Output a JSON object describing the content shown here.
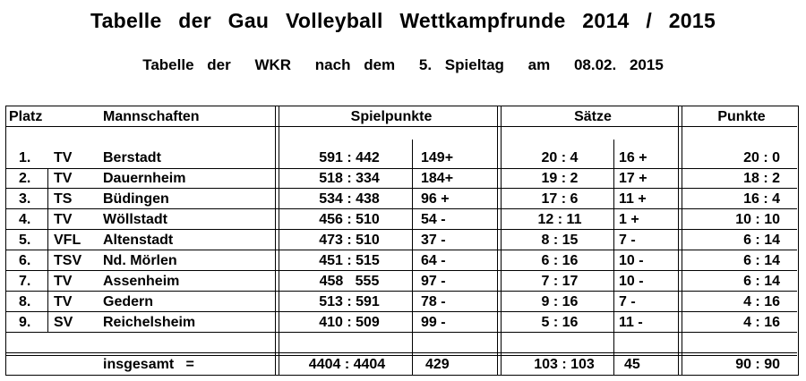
{
  "title": "Tabelle der Gau Volleyball Wettkampfrunde 2014 / 2015",
  "subtitle": {
    "part1": "Tabelle der",
    "part2": "WKR",
    "part3": "nach dem",
    "part4": "5. Spieltag",
    "part5": "am",
    "part6": "08.02. 2015"
  },
  "headers": {
    "platz": "Platz",
    "mannschaften": "Mannschaften",
    "spielpunkte": "Spielpunkte",
    "saetze": "Sätze",
    "punkte": "Punkte"
  },
  "rows": [
    {
      "platz": "1.",
      "verein": "TV",
      "name": "Berstadt",
      "sp": "591 : 442",
      "spd": "149+",
      "s": "20 : 4",
      "sd": "16 +",
      "p": "20 : 0"
    },
    {
      "platz": "2.",
      "verein": "TV",
      "name": "Dauernheim",
      "sp": "518 : 334",
      "spd": "184+",
      "s": "19 : 2",
      "sd": "17 +",
      "p": "18 : 2"
    },
    {
      "platz": "3.",
      "verein": "TS",
      "name": "Büdingen",
      "sp": "534 : 438",
      "spd": "96 +",
      "s": "17 : 6",
      "sd": "11 +",
      "p": "16 : 4"
    },
    {
      "platz": "4.",
      "verein": "TV",
      "name": "Wöllstadt",
      "sp": "456 : 510",
      "spd": "54 -",
      "s": "12 : 11",
      "sd": "1 +",
      "p": "10 : 10"
    },
    {
      "platz": "5.",
      "verein": "VFL",
      "name": "Altenstadt",
      "sp": "473 : 510",
      "spd": "37 -",
      "s": "8 : 15",
      "sd": "7 -",
      "p": "6 : 14"
    },
    {
      "platz": "6.",
      "verein": "TSV",
      "name": "Nd. Mörlen",
      "sp": "451 : 515",
      "spd": "64 -",
      "s": "6 : 16",
      "sd": "10 -",
      "p": "6 : 14"
    },
    {
      "platz": "7.",
      "verein": "TV",
      "name": "Assenheim",
      "sp": "458   555",
      "spd": "97 -",
      "s": "7 : 17",
      "sd": "10 -",
      "p": "6 : 14"
    },
    {
      "platz": "8.",
      "verein": "TV",
      "name": "Gedern",
      "sp": "513 : 591",
      "spd": "78 -",
      "s": "9 : 16",
      "sd": "7 -",
      "p": "4 : 16"
    },
    {
      "platz": "9.",
      "verein": "SV",
      "name": "Reichelsheim",
      "sp": "410 : 509",
      "spd": "99 -",
      "s": "5 : 16",
      "sd": "11 -",
      "p": "4 : 16"
    }
  ],
  "total": {
    "label": "insgesamt   =",
    "sp": "4404 : 4404",
    "spd": "429",
    "s": "103 : 103",
    "sd": "45",
    "p": "90 : 90"
  }
}
